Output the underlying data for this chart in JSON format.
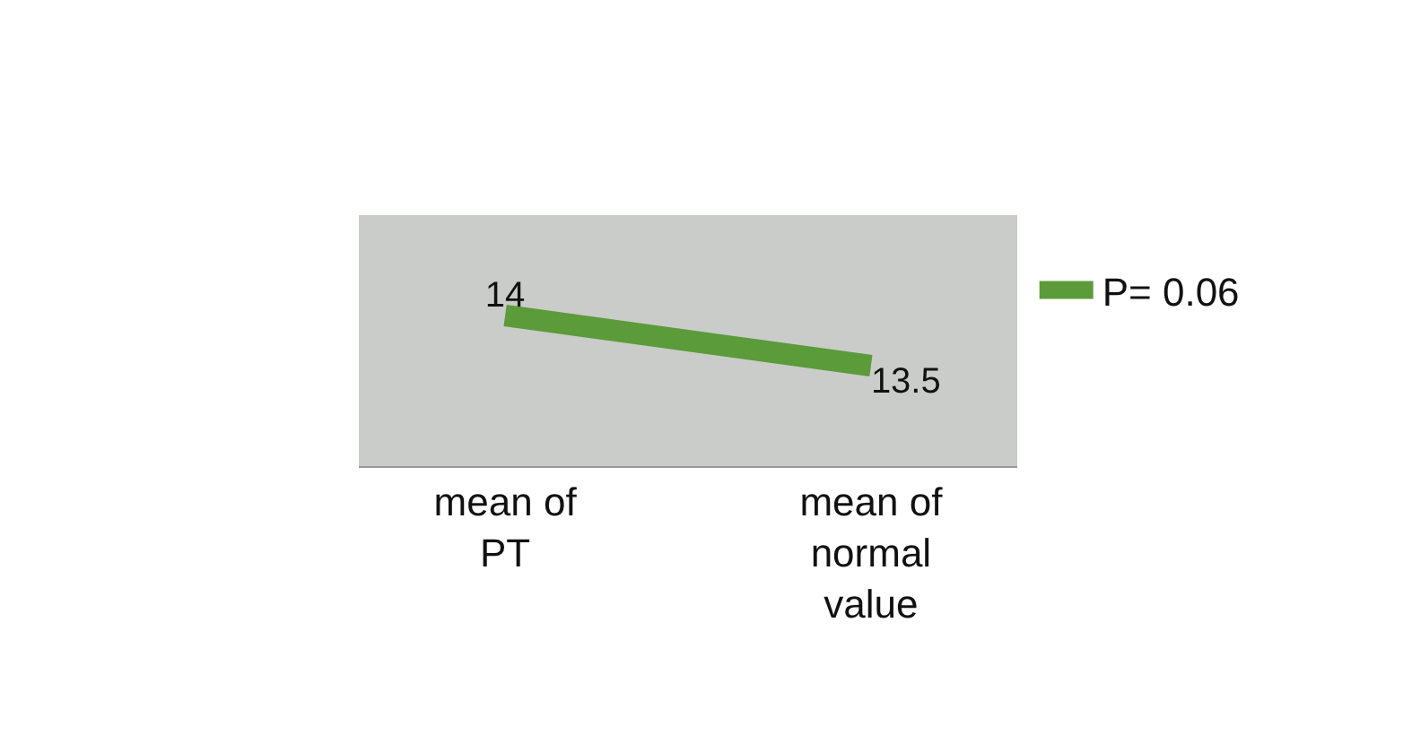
{
  "chart_data": {
    "type": "line",
    "categories": [
      "mean of PT",
      "mean of normal value"
    ],
    "series": [
      {
        "name": "P= 0.06",
        "color": "#5b9b3a",
        "values": [
          14,
          13.5
        ]
      }
    ],
    "data_labels": true,
    "legend": "right",
    "marker": "none",
    "line_style": "solid",
    "grid": false
  }
}
